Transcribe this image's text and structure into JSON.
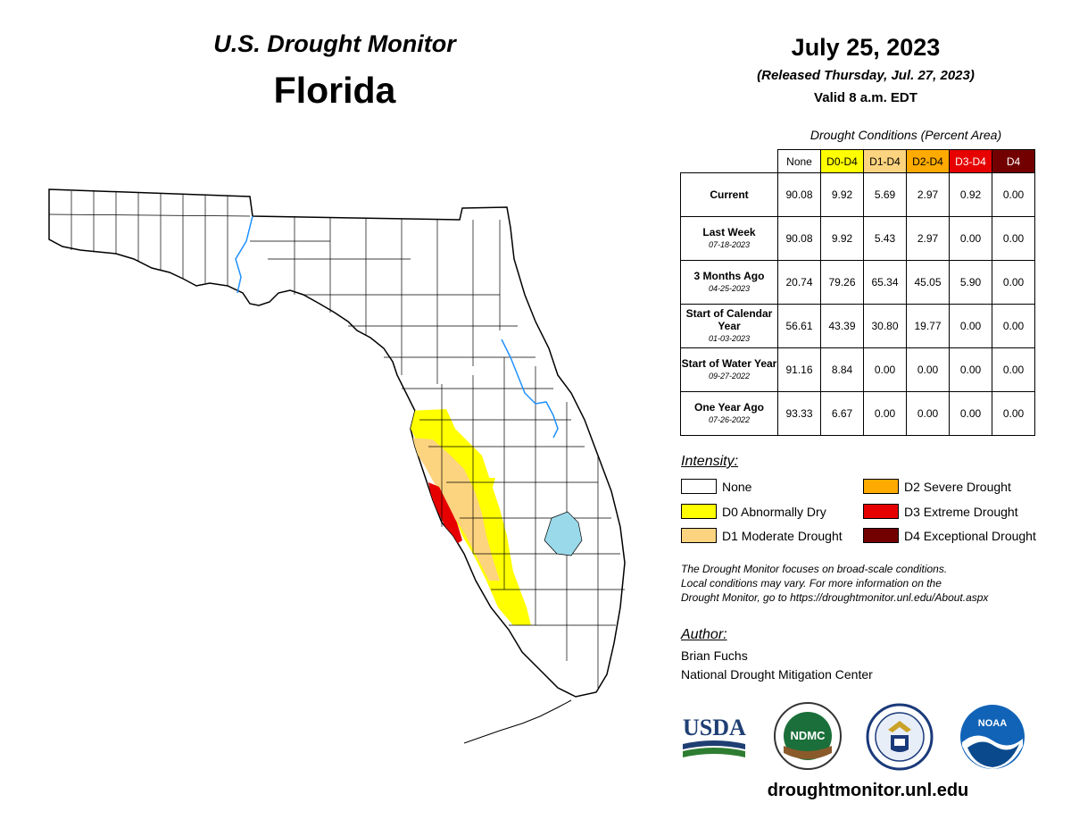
{
  "header": {
    "title": "U.S. Drought Monitor",
    "state": "Florida",
    "date": "July 25, 2023",
    "released": "(Released Thursday, Jul. 27, 2023)",
    "valid": "Valid 8 a.m. EDT"
  },
  "table": {
    "title": "Drought Conditions (Percent Area)",
    "columns": [
      "None",
      "D0-D4",
      "D1-D4",
      "D2-D4",
      "D3-D4",
      "D4"
    ],
    "rows": [
      {
        "label": "Current",
        "date": "",
        "values": [
          "90.08",
          "9.92",
          "5.69",
          "2.97",
          "0.92",
          "0.00"
        ]
      },
      {
        "label": "Last Week",
        "date": "07-18-2023",
        "values": [
          "90.08",
          "9.92",
          "5.43",
          "2.97",
          "0.00",
          "0.00"
        ]
      },
      {
        "label": "3 Months Ago",
        "date": "04-25-2023",
        "values": [
          "20.74",
          "79.26",
          "65.34",
          "45.05",
          "5.90",
          "0.00"
        ]
      },
      {
        "label": "Start of Calendar Year",
        "date": "01-03-2023",
        "values": [
          "56.61",
          "43.39",
          "30.80",
          "19.77",
          "0.00",
          "0.00"
        ]
      },
      {
        "label": "Start of Water Year",
        "date": "09-27-2022",
        "values": [
          "91.16",
          "8.84",
          "0.00",
          "0.00",
          "0.00",
          "0.00"
        ]
      },
      {
        "label": "One Year Ago",
        "date": "07-26-2022",
        "values": [
          "93.33",
          "6.67",
          "0.00",
          "0.00",
          "0.00",
          "0.00"
        ]
      }
    ]
  },
  "legend": {
    "title": "Intensity:",
    "items": [
      {
        "label": "None",
        "color": "#ffffff"
      },
      {
        "label": "D0 Abnormally Dry",
        "color": "#ffff00"
      },
      {
        "label": "D1 Moderate Drought",
        "color": "#fcd37f"
      },
      {
        "label": "D2 Severe Drought",
        "color": "#ffaa00"
      },
      {
        "label": "D3 Extreme Drought",
        "color": "#e60000"
      },
      {
        "label": "D4 Exceptional Drought",
        "color": "#730000"
      }
    ]
  },
  "note": {
    "line1": "The Drought Monitor focuses on broad-scale conditions.",
    "line2": "Local conditions may vary. For more information on the",
    "line3": "Drought Monitor, go to https://droughtmonitor.unl.edu/About.aspx"
  },
  "author": {
    "title": "Author:",
    "name": "Brian Fuchs",
    "org": "National Drought Mitigation Center"
  },
  "logos": {
    "usda": "USDA",
    "ndmc": "NDMC",
    "noaa": "NOAA"
  },
  "website": "droughtmonitor.unl.edu",
  "colors": {
    "water": "#99d9ea",
    "river": "#1e90ff"
  }
}
